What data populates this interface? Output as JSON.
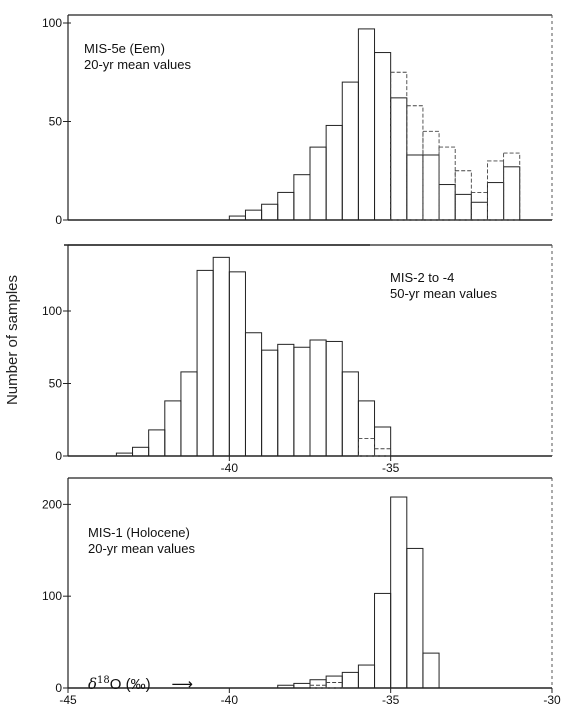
{
  "y_axis_label": "Number of samples",
  "x_unit": {
    "delta": "δ",
    "sup": "18",
    "rest": "O (‰)"
  },
  "chart_data": [
    {
      "type": "bar",
      "title": "MIS-5e (Eem)",
      "subtitle": "20-yr mean values",
      "xlabel": "δ18O (‰)",
      "ylabel": "Number of samples",
      "xlim": [
        -45,
        -30
      ],
      "ylim": [
        0,
        100
      ],
      "yticks": [
        0,
        50,
        100
      ],
      "xticks": [],
      "bin_width": 0.5,
      "x": [
        -40,
        -39.5,
        -39,
        -38.5,
        -38,
        -37.5,
        -37,
        -36.5,
        -36,
        -35.5,
        -35,
        -34.5,
        -34,
        -33.5,
        -33,
        -32.5,
        -32,
        -31.5
      ],
      "values": [
        2,
        5,
        8,
        14,
        23,
        37,
        48,
        70,
        97,
        85,
        62,
        33,
        33,
        18,
        13,
        9,
        19,
        27
      ],
      "extra_bars": {
        "x": [
          -35,
          -34.5,
          -34,
          -33.5,
          -33,
          -32.5,
          -32,
          -31.5
        ],
        "values": [
          75,
          58,
          45,
          37,
          25,
          14,
          30,
          34
        ]
      }
    },
    {
      "type": "bar",
      "title": "MIS-2 to -4",
      "subtitle": "50-yr mean values",
      "xlabel": "δ18O (‰)",
      "ylabel": "Number of samples",
      "xlim": [
        -45,
        -30
      ],
      "ylim": [
        0,
        140
      ],
      "yticks": [
        0,
        50,
        100
      ],
      "xticks": [
        -40,
        -35
      ],
      "bin_width": 0.5,
      "x": [
        -43.5,
        -43,
        -42.5,
        -42,
        -41.5,
        -41,
        -40.5,
        -40,
        -39.5,
        -39,
        -38.5,
        -38,
        -37.5,
        -37,
        -36.5,
        -36,
        -35.5
      ],
      "values": [
        2,
        6,
        18,
        38,
        58,
        128,
        137,
        127,
        85,
        73,
        77,
        75,
        80,
        79,
        58,
        38,
        20
      ],
      "extra_bars": {
        "x": [
          -36,
          -35.5
        ],
        "values": [
          12,
          5
        ]
      }
    },
    {
      "type": "bar",
      "title": "MIS-1 (Holocene)",
      "subtitle": "20-yr mean values",
      "xlabel": "δ18O (‰)",
      "ylabel": "Number of samples",
      "xlim": [
        -45,
        -30
      ],
      "ylim": [
        0,
        220
      ],
      "yticks": [
        0,
        100,
        200
      ],
      "xticks": [
        -45,
        -40,
        -35,
        -30
      ],
      "bin_width": 0.5,
      "x": [
        -38.5,
        -38,
        -37.5,
        -37,
        -36.5,
        -36,
        -35.5,
        -35,
        -34.5,
        -34
      ],
      "values": [
        3,
        5,
        9,
        13,
        17,
        25,
        103,
        208,
        152,
        38
      ],
      "extra_bars": {
        "x": [
          -37.5,
          -37
        ],
        "values": [
          3,
          6
        ]
      }
    }
  ]
}
